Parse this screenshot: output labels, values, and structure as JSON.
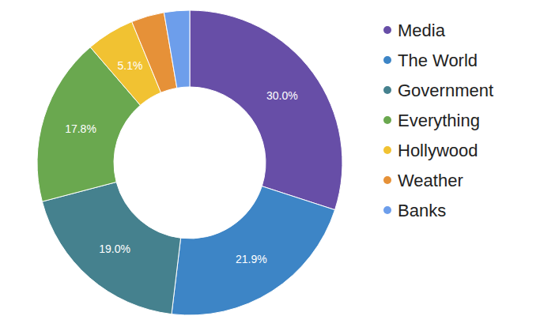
{
  "chart_data": {
    "type": "donut",
    "categories": [
      "Media",
      "The World",
      "Government",
      "Everything",
      "Hollywood",
      "Weather",
      "Banks"
    ],
    "values": [
      30.0,
      21.9,
      19.0,
      17.8,
      5.1,
      3.5,
      2.7
    ],
    "value_labels": [
      "30.0%",
      "21.9%",
      "19.0%",
      "17.8%",
      "5.1%",
      null,
      null
    ],
    "colors": [
      "#674ea7",
      "#3d85c6",
      "#45818e",
      "#6aa84f",
      "#f1c232",
      "#e69138",
      "#6d9eeb"
    ],
    "data_labels": true,
    "legend": "right"
  }
}
